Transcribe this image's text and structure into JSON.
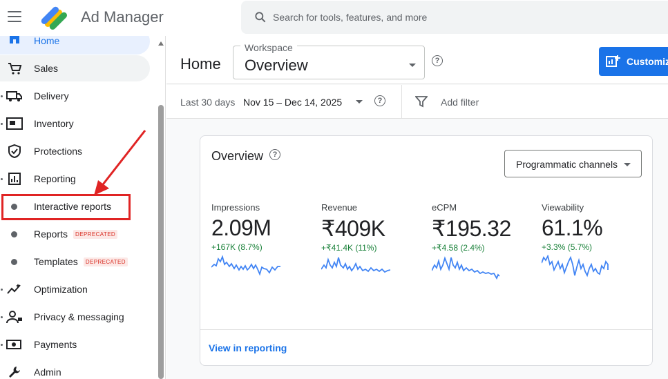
{
  "app": {
    "title": "Ad Manager"
  },
  "search": {
    "placeholder": "Search for tools, features, and more"
  },
  "sidebar": {
    "items": [
      {
        "label": "Home",
        "icon": "home-icon"
      },
      {
        "label": "Sales",
        "icon": "cart-icon"
      },
      {
        "label": "Delivery",
        "icon": "truck-icon"
      },
      {
        "label": "Inventory",
        "icon": "inventory-icon"
      },
      {
        "label": "Protections",
        "icon": "shield-icon"
      },
      {
        "label": "Reporting",
        "icon": "bar-chart-icon"
      },
      {
        "label": "Interactive reports",
        "icon": "dot-icon"
      },
      {
        "label": "Reports",
        "icon": "dot-icon",
        "badge": "DEPRECATED"
      },
      {
        "label": "Templates",
        "icon": "dot-icon",
        "badge": "DEPRECATED"
      },
      {
        "label": "Optimization",
        "icon": "optimization-icon"
      },
      {
        "label": "Privacy & messaging",
        "icon": "privacy-icon"
      },
      {
        "label": "Payments",
        "icon": "payments-icon"
      },
      {
        "label": "Admin",
        "icon": "wrench-icon"
      }
    ]
  },
  "header": {
    "title": "Home",
    "workspace_label": "Workspace",
    "workspace_value": "Overview",
    "customize_label": "Customiz"
  },
  "filters": {
    "date_label": "Last 30 days",
    "date_range": "Nov 15 – Dec 14, 2025",
    "add_filter": "Add filter"
  },
  "card": {
    "title": "Overview",
    "channel_select": "Programmatic channels",
    "view_link": "View in reporting",
    "metrics": [
      {
        "label": "Impressions",
        "value": "2.09M",
        "delta": "+167K (8.7%)"
      },
      {
        "label": "Revenue",
        "value": "₹409K",
        "delta": "+₹41.4K (11%)"
      },
      {
        "label": "eCPM",
        "value": "₹195.32",
        "delta": "+₹4.58 (2.4%)"
      },
      {
        "label": "Viewability",
        "value": "61.1%",
        "delta": "+3.3% (5.7%)"
      }
    ]
  },
  "colors": {
    "accent": "#1a73e8",
    "positive": "#188038",
    "annotation": "#e02424",
    "badge": "#d93025"
  }
}
